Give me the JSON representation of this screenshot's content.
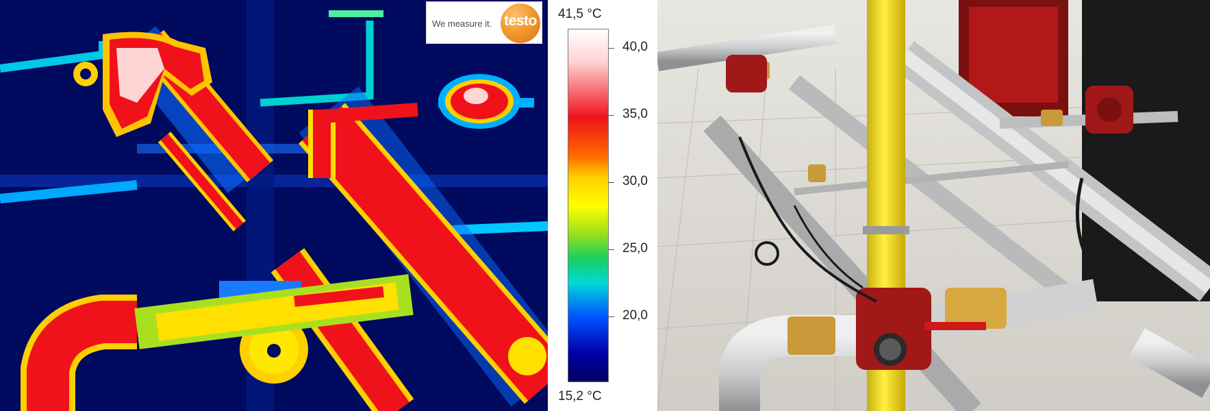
{
  "logo": {
    "tagline": "We measure it.",
    "brand": "testo"
  },
  "scale": {
    "max_label": "41,5 °C",
    "min_label": "15,2 °C",
    "ticks": [
      "40,0",
      "35,0",
      "30,0",
      "25,0",
      "20,0"
    ]
  },
  "colors": {
    "background_cold": "#000a5e",
    "hot": "#f0121a",
    "gas_pipe": "#f5e020",
    "pump": "#a01818",
    "brass": "#c89a3a",
    "pipe_grey": "#c9cbcc"
  }
}
